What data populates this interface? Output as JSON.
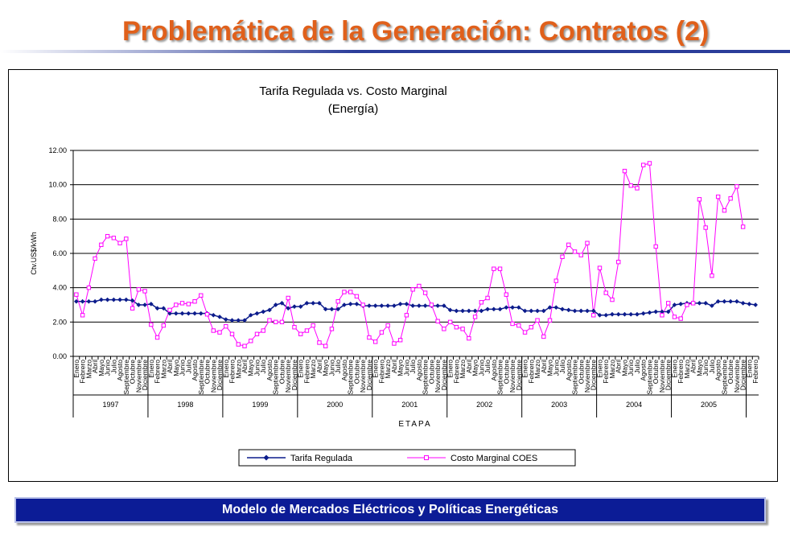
{
  "slide": {
    "title": "Problemática de la Generación: Contratos (2)",
    "footer": "Modelo de Mercados Eléctricos y Políticas Energéticas"
  },
  "colors": {
    "title": "#e0601b",
    "footer_bg": "#0c1c96",
    "series_regulada": "#0c1c8c",
    "series_coes": "#ff00ff"
  },
  "chart_data": {
    "type": "line",
    "title": "Tarifa Regulada vs. Costo Marginal",
    "subtitle": "(Energía)",
    "xlabel": "ETAPA",
    "ylabel": "Ctv.US$/kWh",
    "ylim": [
      0,
      12
    ],
    "yticks": [
      "0.00",
      "2.00",
      "4.00",
      "6.00",
      "8.00",
      "10.00",
      "12.00"
    ],
    "grid": true,
    "legend_position": "bottom",
    "years": [
      "1997",
      "1998",
      "1999",
      "2000",
      "2001",
      "2002",
      "2003",
      "2004",
      "2005"
    ],
    "months": [
      "Enero",
      "Febrero",
      "Marzo",
      "Abril",
      "Mayo",
      "Junio",
      "Julio",
      "Agosto",
      "Septiembre",
      "Octubre",
      "Noviembre",
      "Diciembre"
    ],
    "series": [
      {
        "name": "Tarifa Regulada",
        "marker": "diamond",
        "color": "#0c1c8c",
        "values": [
          3.2,
          3.2,
          3.2,
          3.2,
          3.3,
          3.3,
          3.3,
          3.3,
          3.3,
          3.25,
          3.0,
          3.0,
          3.05,
          2.8,
          2.8,
          2.5,
          2.5,
          2.5,
          2.5,
          2.5,
          2.5,
          2.5,
          2.4,
          2.3,
          2.15,
          2.1,
          2.1,
          2.1,
          2.4,
          2.5,
          2.6,
          2.7,
          3.0,
          3.1,
          2.8,
          2.9,
          2.9,
          3.1,
          3.1,
          3.1,
          2.75,
          2.75,
          2.75,
          3.0,
          3.05,
          3.05,
          2.95,
          2.95,
          2.95,
          2.95,
          2.95,
          2.95,
          3.05,
          3.05,
          2.95,
          2.95,
          2.95,
          2.95,
          2.95,
          2.95,
          2.7,
          2.65,
          2.65,
          2.65,
          2.65,
          2.65,
          2.75,
          2.75,
          2.75,
          2.85,
          2.85,
          2.85,
          2.65,
          2.65,
          2.65,
          2.65,
          2.85,
          2.85,
          2.75,
          2.7,
          2.65,
          2.65,
          2.65,
          2.65,
          2.4,
          2.4,
          2.45,
          2.45,
          2.45,
          2.45,
          2.45,
          2.5,
          2.55,
          2.6,
          2.6,
          2.6,
          3.0,
          3.05,
          3.1,
          3.1,
          3.1,
          3.1,
          2.95,
          3.2,
          3.2,
          3.2,
          3.2,
          3.1,
          3.05,
          3.0
        ]
      },
      {
        "name": "Costo Marginal COES",
        "marker": "square",
        "color": "#ff00ff",
        "values": [
          3.6,
          2.4,
          4.0,
          5.7,
          6.5,
          7.0,
          6.9,
          6.6,
          6.85,
          2.8,
          3.9,
          3.8,
          1.85,
          1.1,
          1.8,
          2.7,
          3.0,
          3.1,
          3.05,
          3.2,
          3.55,
          2.45,
          1.5,
          1.4,
          1.75,
          1.3,
          0.7,
          0.6,
          0.9,
          1.3,
          1.5,
          2.1,
          2.0,
          2.0,
          3.4,
          1.7,
          1.3,
          1.5,
          1.8,
          0.8,
          0.6,
          1.6,
          3.2,
          3.75,
          3.75,
          3.5,
          3.0,
          1.1,
          0.85,
          1.4,
          1.8,
          0.75,
          0.95,
          2.4,
          3.9,
          4.1,
          3.7,
          3.0,
          2.05,
          1.6,
          2.0,
          1.7,
          1.6,
          1.05,
          2.3,
          3.15,
          3.4,
          5.1,
          5.1,
          3.6,
          1.9,
          1.8,
          1.4,
          1.7,
          2.1,
          1.15,
          2.1,
          4.4,
          5.8,
          6.5,
          6.1,
          5.9,
          6.6,
          2.4,
          5.15,
          3.7,
          3.3,
          5.5,
          10.8,
          9.95,
          9.8,
          11.15,
          11.25,
          6.4,
          2.4,
          3.1,
          2.3,
          2.2,
          3.0,
          3.1,
          9.15,
          7.5,
          4.7,
          9.3,
          8.5,
          9.2,
          9.9,
          7.55
        ]
      }
    ]
  }
}
